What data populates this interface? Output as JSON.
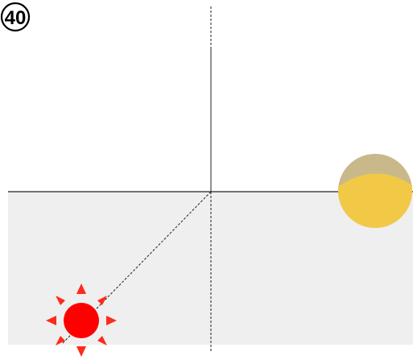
{
  "step_badge": {
    "number": "40"
  },
  "colors": {
    "ground_fill": "#efefef",
    "horizon_line": "#222222",
    "axis_line": "#222222",
    "sun_ray_line": "#222222",
    "sun_body": "#ff0000",
    "sun_rays": "#ff2a1a",
    "moon_dark_half": "#c9b98a",
    "moon_lit_half": "#f2c947"
  },
  "icons": {
    "sun": "sun-icon",
    "moon": "moon-icon"
  }
}
